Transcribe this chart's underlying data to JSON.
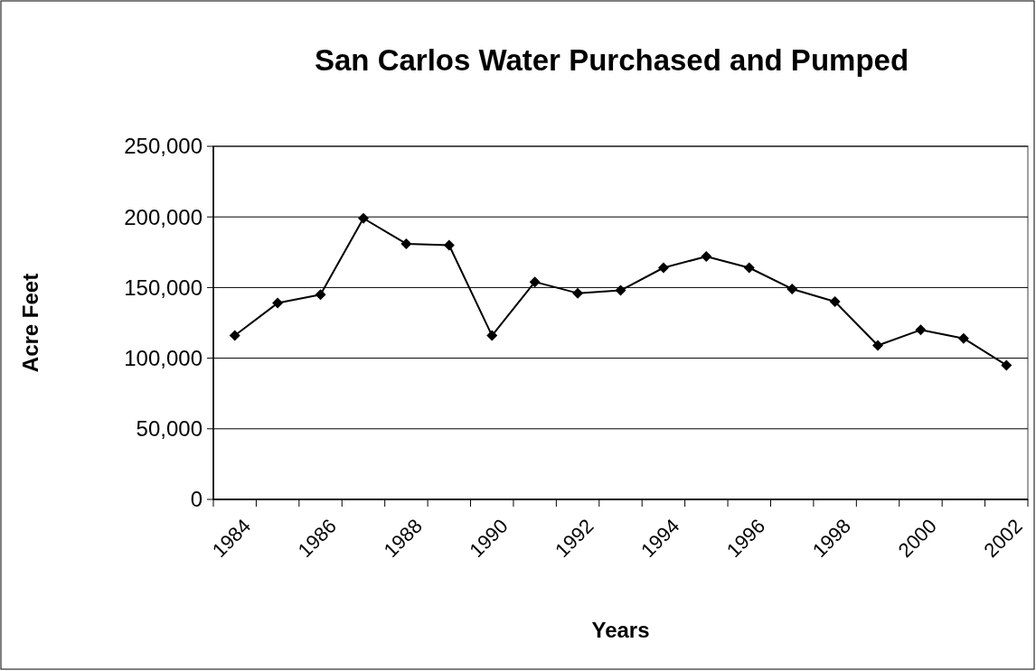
{
  "chart_data": {
    "type": "line",
    "title": "San Carlos Water Purchased and Pumped",
    "xlabel": "Years",
    "ylabel": "Acre Feet",
    "categories": [
      "1984",
      null,
      "1986",
      null,
      "1988",
      null,
      "1990",
      null,
      "1992",
      null,
      "1994",
      null,
      "1996",
      null,
      "1998",
      null,
      "2000",
      null,
      "2002"
    ],
    "series": [
      {
        "color": "#000000",
        "values": [
          116000,
          139000,
          145000,
          199000,
          181000,
          180000,
          116000,
          154000,
          146000,
          148000,
          164000,
          172000,
          164000,
          149000,
          140000,
          109000,
          120000,
          114000,
          95000
        ]
      }
    ],
    "ylim": [
      0,
      250000
    ],
    "yticks": [
      {
        "value": 0,
        "label": "0"
      },
      {
        "value": 50000,
        "label": "50,000"
      },
      {
        "value": 100000,
        "label": "100,000"
      },
      {
        "value": 150000,
        "label": "150,000"
      },
      {
        "value": 200000,
        "label": "200,000"
      },
      {
        "value": 250000,
        "label": "250,000"
      }
    ],
    "grid": "y",
    "marker": "diamond",
    "line_style": "solid"
  }
}
